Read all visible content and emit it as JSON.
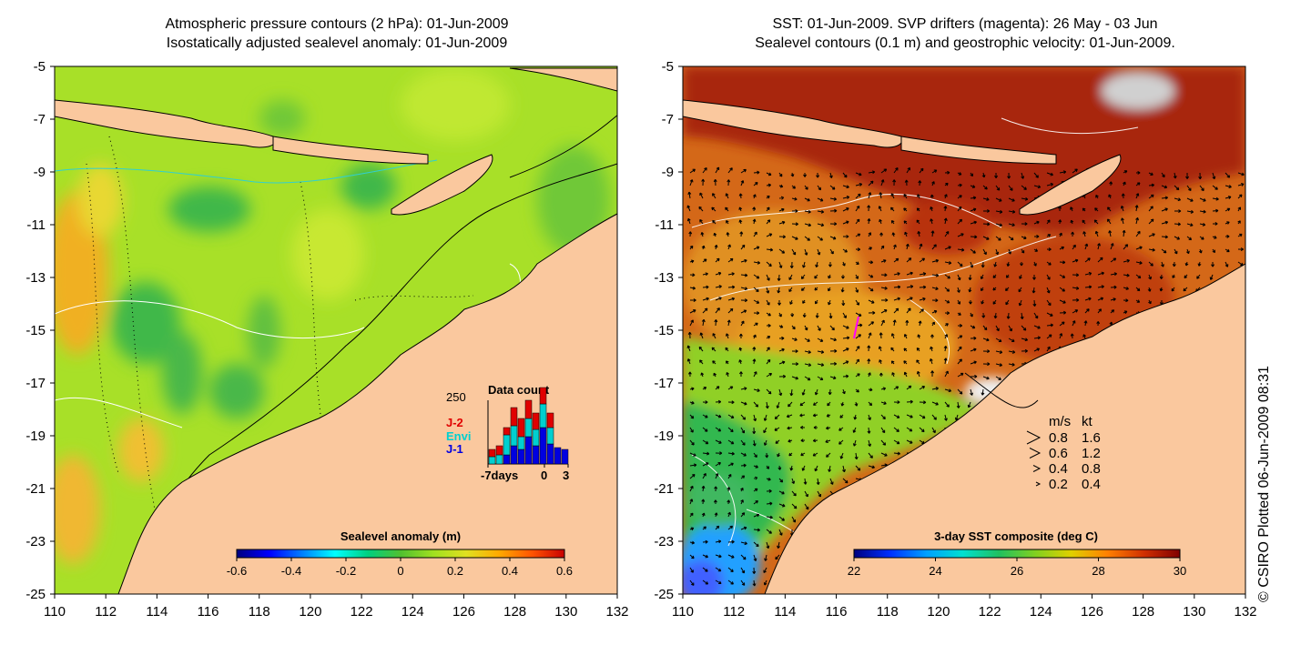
{
  "left_map": {
    "title_line1": "Atmospheric pressure contours (2 hPa): 01-Jun-2009",
    "title_line2": "Isostatically adjusted sealevel anomaly: 01-Jun-2009",
    "x_ticks": [
      "110",
      "112",
      "114",
      "116",
      "118",
      "120",
      "122",
      "124",
      "126",
      "128",
      "130",
      "132"
    ],
    "y_ticks": [
      "-5",
      "-7",
      "-9",
      "-11",
      "-13",
      "-15",
      "-17",
      "-19",
      "-21",
      "-23",
      "-25"
    ],
    "colorbar": {
      "title": "Sealevel anomaly (m)",
      "ticks": [
        "-0.6",
        "-0.4",
        "-0.2",
        "0",
        "0.2",
        "0.4",
        "0.6"
      ],
      "colors": [
        "#00007f",
        "#0000ff",
        "#007fff",
        "#00ffff",
        "#00d080",
        "#50c030",
        "#a0e020",
        "#e0e020",
        "#ffaa00",
        "#ff5500",
        "#c80000"
      ]
    },
    "inset": {
      "title": "Data count",
      "y_top_label": "250",
      "x_labels": [
        "-7days",
        "0",
        "3"
      ],
      "missions": [
        {
          "name": "J-2",
          "color": "#e00000"
        },
        {
          "name": "Envi",
          "color": "#00d0d0"
        },
        {
          "name": "J-1",
          "color": "#0000e0"
        }
      ]
    }
  },
  "right_map": {
    "title_line1": "SST: 01-Jun-2009. SVP drifters (magenta): 26 May - 03 Jun",
    "title_line2": "Sealevel contours (0.1 m) and geostrophic velocity: 01-Jun-2009.",
    "x_ticks": [
      "110",
      "112",
      "114",
      "116",
      "118",
      "120",
      "122",
      "124",
      "126",
      "128",
      "130",
      "132"
    ],
    "y_ticks": [
      "-5",
      "-7",
      "-9",
      "-11",
      "-13",
      "-15",
      "-17",
      "-19",
      "-21",
      "-23",
      "-25"
    ],
    "colorbar": {
      "title": "3-day SST composite (deg C)",
      "ticks": [
        "22",
        "24",
        "26",
        "28",
        "30"
      ],
      "colors": [
        "#00007f",
        "#0030ff",
        "#00a0ff",
        "#00e0d0",
        "#20c060",
        "#80d020",
        "#e0d000",
        "#ff8000",
        "#d03000",
        "#800000"
      ]
    },
    "speed_legend": {
      "unit_ms": "m/s",
      "unit_kt": "kt",
      "rows": [
        {
          "ms": "0.8",
          "kt": "1.6"
        },
        {
          "ms": "0.6",
          "kt": "1.2"
        },
        {
          "ms": "0.4",
          "kt": "0.8"
        },
        {
          "ms": "0.2",
          "kt": "0.4"
        }
      ]
    }
  },
  "credit": "© CSIRO Plotted 06-Jun-2009 08:31",
  "colors": {
    "land": "#fac89e",
    "sealevel_base": "#a8e028",
    "sst_base": "#d46818"
  }
}
